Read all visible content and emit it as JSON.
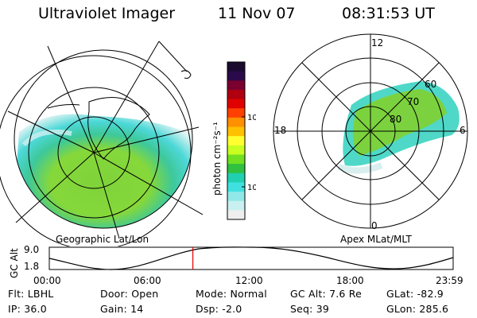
{
  "header": {
    "instrument": "Ultraviolet Imager",
    "date": "11 Nov 07",
    "time": "08:31:53 UT"
  },
  "left_panel": {
    "label": "Geographic Lat/Lon"
  },
  "right_panel": {
    "label": "Apex MLat/MLT",
    "mlt_labels": {
      "top": "12",
      "left": "18",
      "right": "6",
      "bottom": "0"
    },
    "mlat_labels": [
      "60",
      "70",
      "80"
    ]
  },
  "colorbar": {
    "unit_label": "photon cm⁻²s⁻¹",
    "ticks": [
      "100",
      "10"
    ],
    "colors": [
      "#1a0a2e",
      "#2a0a4a",
      "#7a0030",
      "#b00010",
      "#e00000",
      "#ff4000",
      "#ff9000",
      "#ffc000",
      "#ffff30",
      "#c8ff20",
      "#70e020",
      "#30c040",
      "#20d0b0",
      "#40e0e0",
      "#90e8e8",
      "#c8f0f0",
      "#eeeeee"
    ]
  },
  "altitude_plot": {
    "ylabel": "GC Alt",
    "yticks": [
      "9.0",
      "1.8"
    ],
    "xticks": [
      "00:00",
      "06:00",
      "12:00",
      "18:00",
      "23:59"
    ],
    "current_time_fraction": 0.3555
  },
  "info": {
    "filter": "Flt: LBHL",
    "ip": "IP: 36.0",
    "door": "Door: Open",
    "gain": "Gain: 14",
    "mode": "Mode: Normal",
    "dsp": "Dsp:    -2.0",
    "gc_alt": "GC Alt: 7.6 Re",
    "seq": "Seq: 39",
    "glat": "GLat: -82.9",
    "glon": "GLon: 285.6"
  }
}
